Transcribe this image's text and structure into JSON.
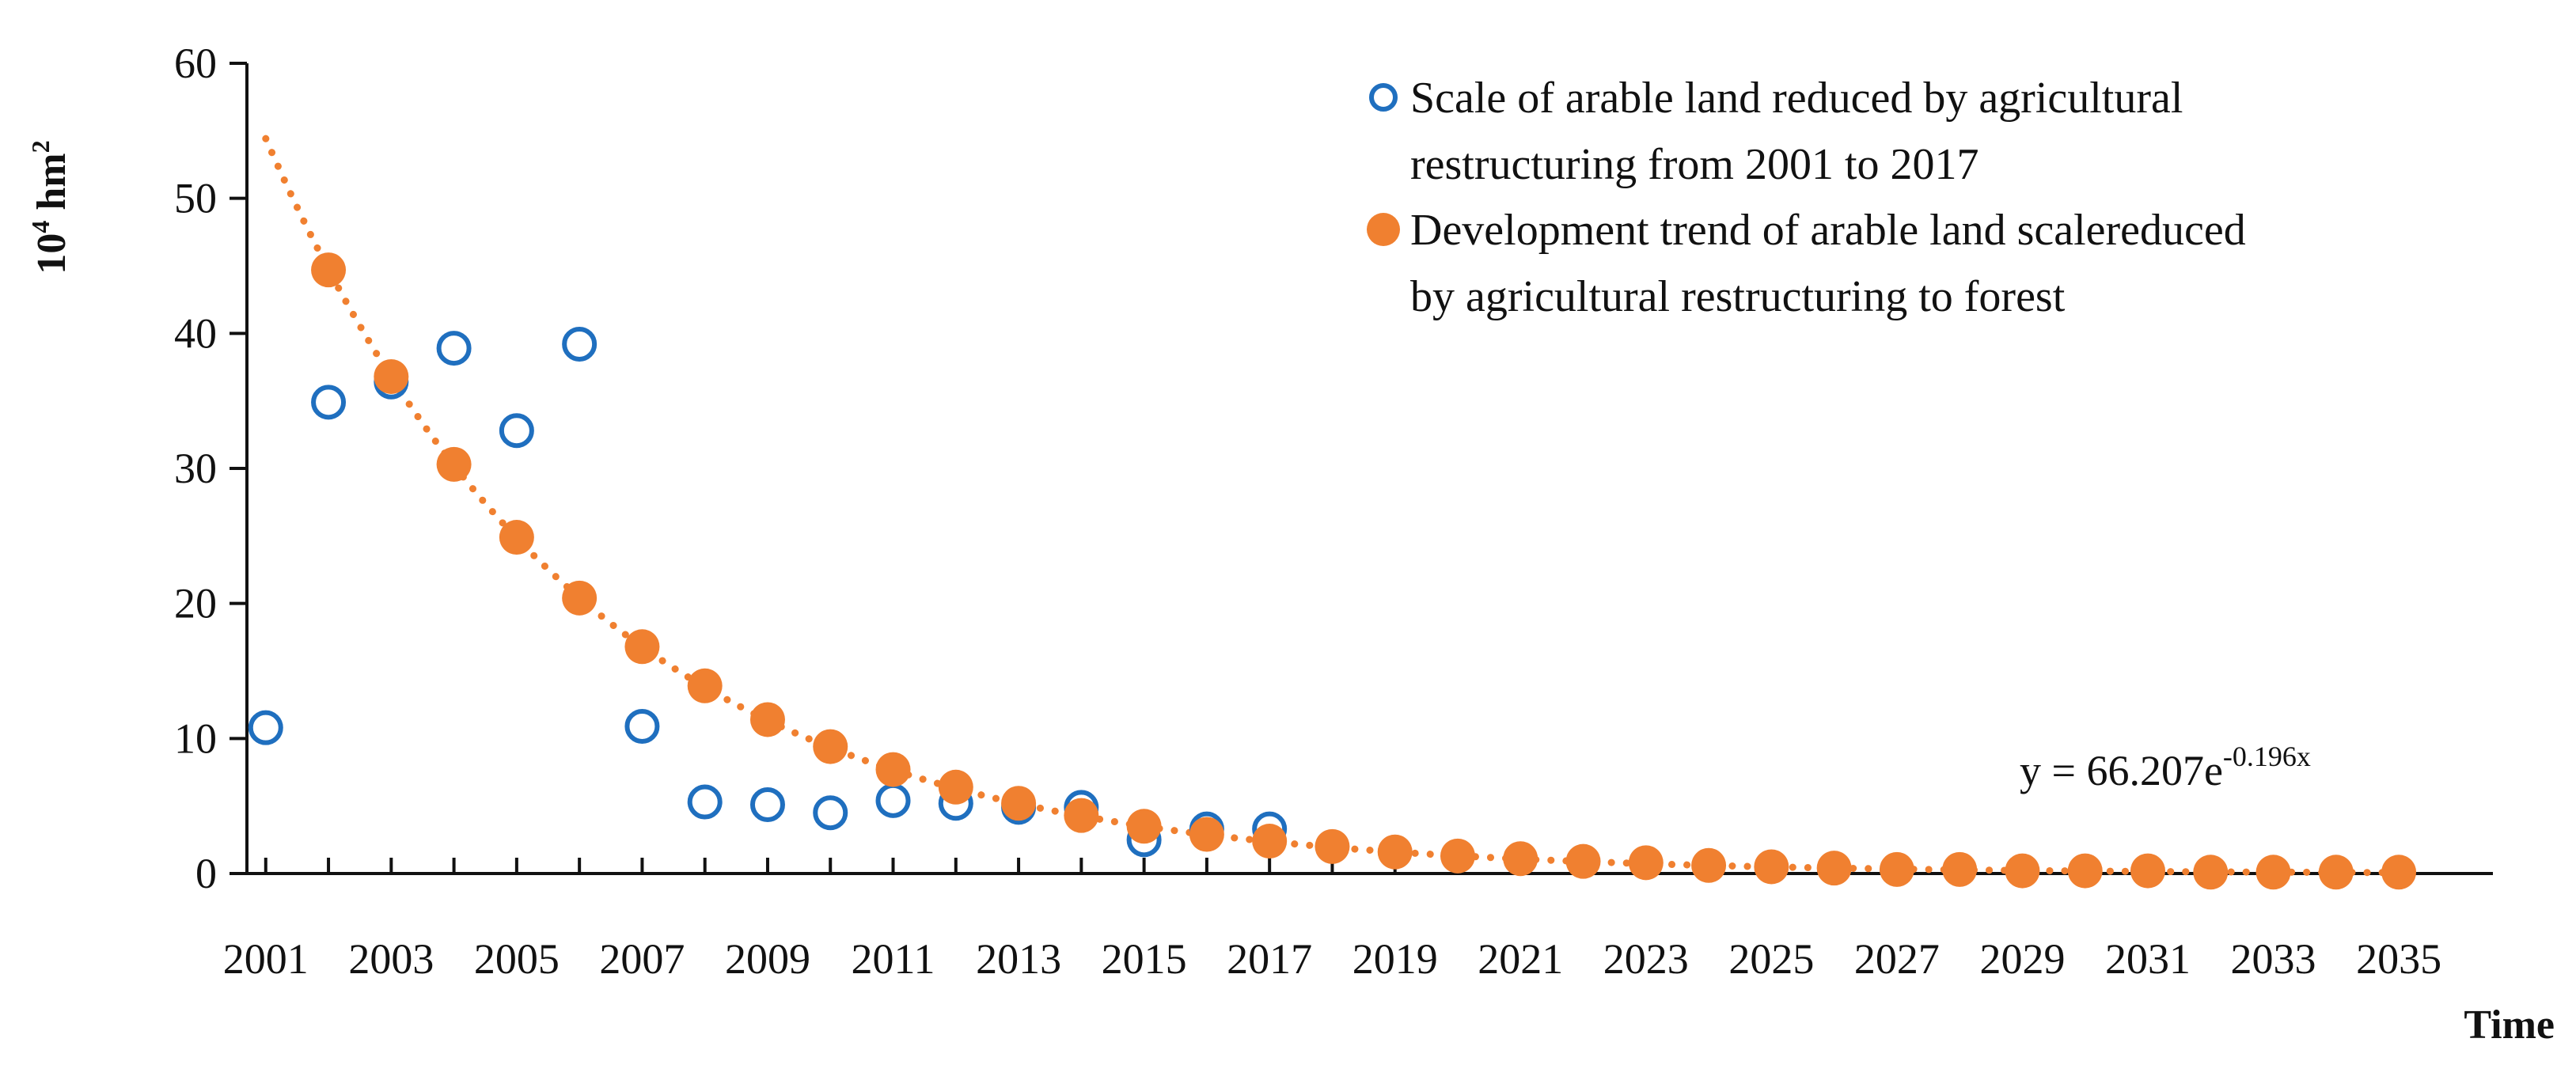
{
  "chart_data": {
    "type": "scatter",
    "title": "",
    "xlabel": "Time",
    "ylabel": {
      "base": "10",
      "exp": "4",
      "unit": "hm",
      "unit_exp": "2"
    },
    "xlim": [
      2000.7,
      2036.5
    ],
    "ylim": [
      0,
      60
    ],
    "y_ticks": [
      0,
      10,
      20,
      30,
      40,
      50,
      60
    ],
    "x_tick_labels": [
      "2001",
      "2003",
      "2005",
      "2007",
      "2009",
      "2011",
      "2013",
      "2015",
      "2017",
      "2019",
      "2021",
      "2023",
      "2025",
      "2027",
      "2029",
      "2031",
      "2033",
      "2035"
    ],
    "x_minor_ticks": [
      2001,
      2002,
      2003,
      2004,
      2005,
      2006,
      2007,
      2008,
      2009,
      2010,
      2011,
      2012,
      2013,
      2014,
      2015,
      2016,
      2017,
      2018,
      2019,
      2020,
      2021,
      2022,
      2023,
      2024,
      2025,
      2026,
      2027,
      2028,
      2029,
      2030,
      2031,
      2032,
      2033,
      2034,
      2035
    ],
    "legend_position": "top-right",
    "series": [
      {
        "name": "Scale of arable land reduced by agricultural restructuring from 2001 to 2017",
        "legend_lines": [
          "Scale of arable land reduced by agricultural",
          "restructuring from 2001 to 2017"
        ],
        "marker": "open-circle",
        "color": "#1f6fbf",
        "x": [
          2001,
          2002,
          2003,
          2004,
          2005,
          2006,
          2007,
          2008,
          2009,
          2010,
          2011,
          2012,
          2013,
          2014,
          2015,
          2016,
          2017
        ],
        "values": [
          10.8,
          34.9,
          36.4,
          38.9,
          32.8,
          39.2,
          10.9,
          5.3,
          5.1,
          4.5,
          5.4,
          5.2,
          4.9,
          4.9,
          2.5,
          3.3,
          3.3
        ]
      },
      {
        "name": "Development trend of arable land scalereduced by agricultural restructuring to forest",
        "legend_lines": [
          "Development trend of arable land scalereduced",
          "by agricultural restructuring to forest"
        ],
        "marker": "filled-circle",
        "color": "#f08030",
        "x": [
          2002,
          2003,
          2004,
          2005,
          2006,
          2007,
          2008,
          2009,
          2010,
          2011,
          2012,
          2013,
          2014,
          2015,
          2016,
          2017,
          2018,
          2019,
          2020,
          2021,
          2022,
          2023,
          2024,
          2025,
          2026,
          2027,
          2028,
          2029,
          2030,
          2031,
          2032,
          2033,
          2034,
          2035
        ],
        "values": [
          44.7,
          36.8,
          30.3,
          24.9,
          20.4,
          16.8,
          13.9,
          11.4,
          9.4,
          7.7,
          6.4,
          5.2,
          4.3,
          3.5,
          2.9,
          2.4,
          2.0,
          1.6,
          1.3,
          1.1,
          0.9,
          0.8,
          0.6,
          0.5,
          0.4,
          0.3,
          0.3,
          0.2,
          0.2,
          0.2,
          0.1,
          0.1,
          0.1,
          0.1
        ]
      }
    ],
    "trendline": {
      "type": "exponential",
      "a": 66.207,
      "b": -0.196,
      "x_start": 2001,
      "x_end": 2035,
      "style": "dotted",
      "color": "#f08030",
      "equation_prefix": "y = 66.207e",
      "equation_exp": "-0.196x"
    }
  }
}
